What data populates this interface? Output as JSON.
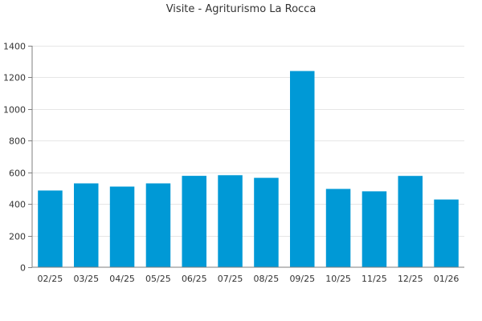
{
  "chart_data": {
    "type": "bar",
    "title": "Visite - Agriturismo La Rocca",
    "xlabel": "",
    "ylabel": "",
    "categories": [
      "02/25",
      "03/25",
      "04/25",
      "05/25",
      "06/25",
      "07/25",
      "08/25",
      "09/25",
      "10/25",
      "11/25",
      "12/25",
      "01/26"
    ],
    "values": [
      485,
      530,
      510,
      530,
      578,
      582,
      565,
      1240,
      495,
      480,
      577,
      428
    ],
    "ylim": [
      0,
      1400
    ],
    "yticks": [
      "0",
      "200",
      "400",
      "600",
      "800",
      "1000",
      "1200",
      "1400"
    ],
    "grid": true,
    "legend": "none",
    "bar_color": "#0099d6"
  }
}
